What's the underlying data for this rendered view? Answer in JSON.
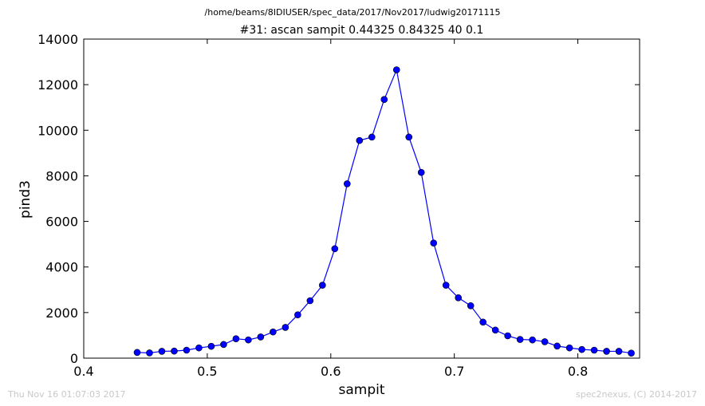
{
  "header": {
    "path": "/home/beams/8IDIUSER/spec_data/2017/Nov2017/ludwig20171115",
    "title": "#31: ascan  sampit 0.44325 0.84325  40 0.1"
  },
  "footer": {
    "timestamp": "Thu Nov 16 01:07:03 2017",
    "credit": "spec2nexus, (C) 2014-2017"
  },
  "colors": {
    "series": "#0000ff",
    "axes": "#000000",
    "footer_text": "#c8c8c8"
  },
  "chart_data": {
    "type": "line",
    "title": "#31: ascan  sampit 0.44325 0.84325  40 0.1",
    "xlabel": "sampit",
    "ylabel": "pind3",
    "xlim": [
      0.4,
      0.85
    ],
    "ylim": [
      0,
      14000
    ],
    "xticks": [
      "0.4",
      "0.5",
      "0.6",
      "0.7",
      "0.8"
    ],
    "yticks": [
      "0",
      "2000",
      "4000",
      "6000",
      "8000",
      "10000",
      "12000",
      "14000"
    ],
    "grid": false,
    "legend": "none",
    "marker": "circle",
    "series": [
      {
        "x": [
          0.44325,
          0.45325,
          0.46325,
          0.47325,
          0.48325,
          0.49325,
          0.50325,
          0.51325,
          0.52325,
          0.53325,
          0.54325,
          0.55325,
          0.56325,
          0.57325,
          0.58325,
          0.59325,
          0.60325,
          0.61325,
          0.62325,
          0.63325,
          0.64325,
          0.65325,
          0.66325,
          0.67325,
          0.68325,
          0.69325,
          0.70325,
          0.71325,
          0.72325,
          0.73325,
          0.74325,
          0.75325,
          0.76325,
          0.77325,
          0.78325,
          0.79325,
          0.80325,
          0.81325,
          0.82325,
          0.83325,
          0.84325
        ],
        "y": [
          250,
          230,
          300,
          310,
          350,
          450,
          520,
          600,
          850,
          800,
          930,
          1150,
          1350,
          1900,
          2520,
          3200,
          4800,
          7650,
          9550,
          9700,
          11350,
          12650,
          9700,
          8150,
          5050,
          3200,
          2650,
          2300,
          1580,
          1230,
          980,
          820,
          800,
          720,
          530,
          450,
          380,
          350,
          300,
          300,
          220
        ]
      }
    ]
  }
}
